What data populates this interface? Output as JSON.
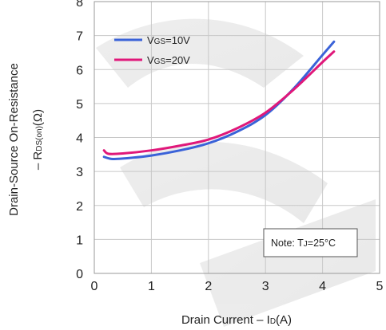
{
  "chart_data": {
    "type": "line",
    "xlabel": "Drain Current  –  ID(A)",
    "ylabel_line1": "Drain-Source On-Resistance",
    "ylabel_line2": "–  RDS(on)(Ω)",
    "xlim": [
      0,
      5
    ],
    "ylim": [
      0,
      8
    ],
    "x_ticks": [
      "0",
      "1",
      "2",
      "3",
      "4",
      "5"
    ],
    "y_ticks": [
      "0",
      "1",
      "2",
      "3",
      "4",
      "5",
      "6",
      "7",
      "8"
    ],
    "grid": true,
    "legend_position": "top-left",
    "annotation": "Note: TJ=25°C",
    "series": [
      {
        "name": "VGS=10V",
        "color": "#3a62d8",
        "x": [
          0.17,
          0.3,
          0.5,
          1.0,
          1.5,
          2.0,
          2.5,
          3.0,
          3.5,
          4.0,
          4.2
        ],
        "y": [
          3.43,
          3.37,
          3.38,
          3.47,
          3.62,
          3.83,
          4.17,
          4.66,
          5.45,
          6.43,
          6.82
        ]
      },
      {
        "name": "VGS=20V",
        "color": "#e0187a",
        "x": [
          0.17,
          0.25,
          0.5,
          1.0,
          1.5,
          2.0,
          2.5,
          3.0,
          3.5,
          4.0,
          4.2
        ],
        "y": [
          3.62,
          3.52,
          3.53,
          3.62,
          3.76,
          3.94,
          4.27,
          4.73,
          5.42,
          6.22,
          6.53
        ]
      }
    ]
  }
}
